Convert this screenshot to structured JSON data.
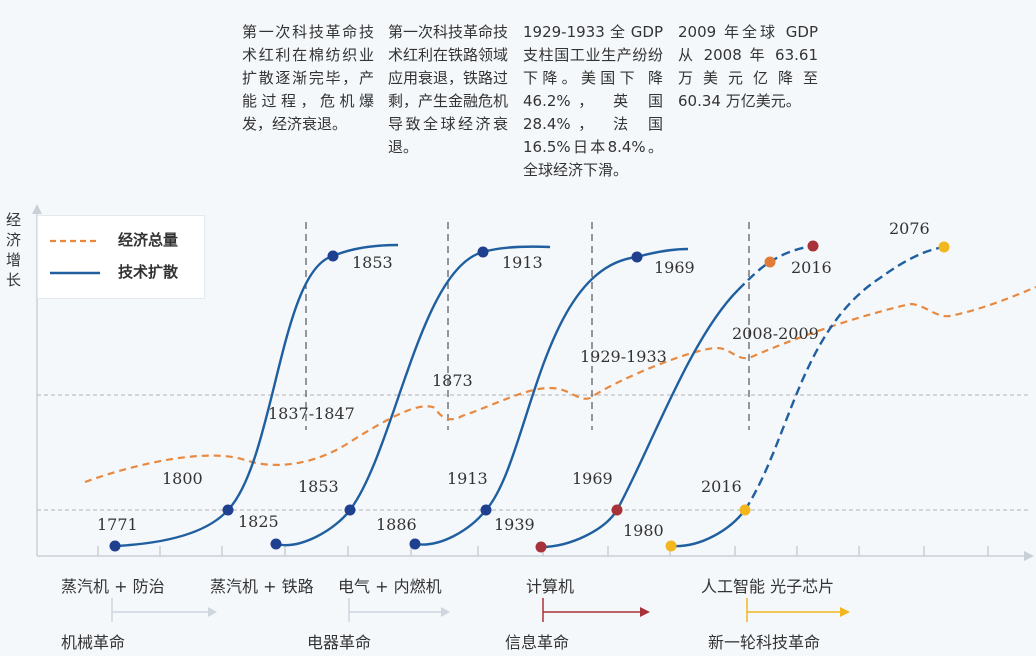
{
  "y_axis_label": "经济增长",
  "legend": {
    "economy": "经济总量",
    "tech": "技术扩散",
    "economy_color": "#e8893f",
    "tech_color": "#1f5fa0"
  },
  "annotations": [
    "第一次科技革命技术红利在棉纺织业扩散逐渐完毕，产能过程，危机爆发，经济衰退。",
    "第一次科技革命技术红利在铁路领域应用衰退，铁路过剩，产生金融危机导致全球经济衰退。",
    "1929-1933 全 GDP 支柱国工业生产纷纷下降。美国下 降 46.2%， 英 国 28.4%， 法 国 16.5%日本8.4%。全球经济下滑。",
    "2009 年全球 GDP 从 2008 年 63.61 万 美 元 亿 降 至 60.34 万亿美元。"
  ],
  "crisis_labels": [
    "1837-1847",
    "1873",
    "1929-1933",
    "2008-2009"
  ],
  "wave_labels": {
    "w1": {
      "start": "1771",
      "mid": "1825",
      "top": "1853"
    },
    "w2": {
      "start": "1853",
      "mid": "1886",
      "top": "1913"
    },
    "w3": {
      "start": "1913",
      "mid": "1939",
      "top": "1969"
    },
    "w4": {
      "start": "1969",
      "mid": "1980",
      "top": "2016"
    },
    "w5": {
      "start": "2016",
      "top": "2076"
    }
  },
  "economy_label": "1800",
  "eras": {
    "tech1a": "蒸汽机 + 防治",
    "tech1b": "蒸汽机 + 铁路",
    "tech2": "电气 + 内燃机",
    "tech3": "计算机",
    "tech4": "人工智能 光子芯片",
    "rev1": "机械革命",
    "rev2": "电器革命",
    "rev3": "信息革命",
    "rev4": "新一轮科技革命"
  },
  "colors": {
    "navy_dot": "#1f3f8f",
    "red_dot": "#a8323a",
    "orange_dot": "#e07b39",
    "yellow_dot": "#f2b61f",
    "arrow_gray": "#cfd6de",
    "arrow_red": "#a8323a",
    "arrow_yellow": "#f2b61f"
  }
}
